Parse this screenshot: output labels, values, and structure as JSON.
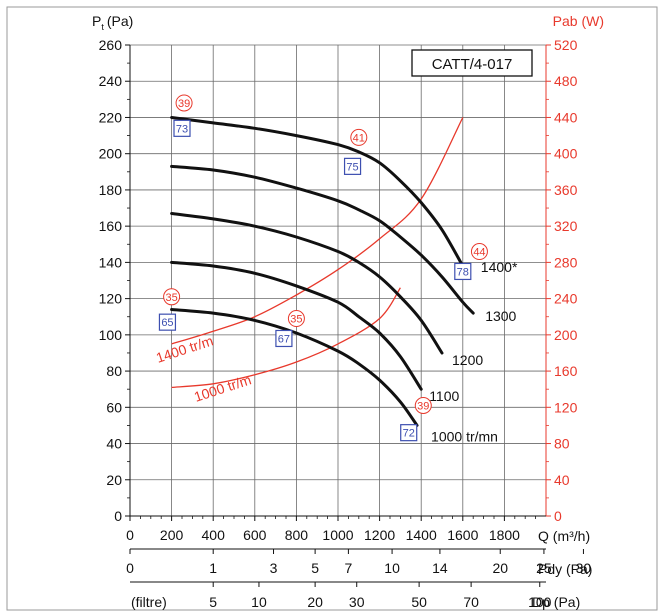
{
  "chart_data": {
    "type": "line",
    "title": "CATT/4-017",
    "xlabel": "Q (m³/h)",
    "ylabel_left": "P",
    "ylabel_left_sub": "t",
    "ylabel_left_unit": "(Pa)",
    "ylabel_right": "Pab (W)",
    "xlim": [
      0,
      2000
    ],
    "ylim": [
      0,
      260
    ],
    "ylim_right": [
      0,
      520
    ],
    "grid": true,
    "x_ticks": [
      0,
      200,
      400,
      600,
      800,
      1000,
      1200,
      1400,
      1600,
      1800
    ],
    "y_ticks": [
      0,
      20,
      40,
      60,
      80,
      100,
      120,
      140,
      160,
      180,
      200,
      220,
      240,
      260
    ],
    "y_right_ticks": [
      0,
      40,
      80,
      120,
      160,
      200,
      240,
      280,
      320,
      360,
      400,
      440,
      480,
      520
    ],
    "pressure_curves": [
      {
        "label": "1400*",
        "x": [
          200,
          400,
          600,
          800,
          1000,
          1100,
          1200,
          1300,
          1400,
          1500,
          1600
        ],
        "y": [
          220,
          217,
          214,
          210,
          205,
          201,
          195,
          185,
          173,
          158,
          138
        ]
      },
      {
        "label": "1300",
        "x": [
          200,
          400,
          600,
          800,
          1000,
          1100,
          1200,
          1300,
          1400,
          1500,
          1600,
          1650
        ],
        "y": [
          193,
          191,
          187,
          181,
          174,
          169,
          163,
          154,
          144,
          132,
          118,
          112
        ]
      },
      {
        "label": "1200",
        "x": [
          200,
          400,
          600,
          800,
          1000,
          1100,
          1200,
          1300,
          1400,
          1500
        ],
        "y": [
          167,
          164,
          160,
          154,
          146,
          140,
          132,
          121,
          108,
          90
        ]
      },
      {
        "label": "1100",
        "x": [
          200,
          400,
          600,
          800,
          1000,
          1100,
          1200,
          1300,
          1400
        ],
        "y": [
          140,
          138,
          134,
          127,
          118,
          110,
          101,
          88,
          70
        ]
      },
      {
        "label": "1000 tr/mn",
        "x": [
          200,
          400,
          600,
          800,
          1000,
          1100,
          1200,
          1300,
          1380
        ],
        "y": [
          114,
          112,
          108,
          101,
          91,
          84,
          75,
          63,
          50
        ]
      }
    ],
    "power_curves": [
      {
        "label": "1400 tr/m",
        "x": [
          200,
          400,
          600,
          800,
          1000,
          1200,
          1400,
          1600
        ],
        "y_watts": [
          190,
          204,
          220,
          244,
          272,
          306,
          350,
          440
        ]
      },
      {
        "label": "1000 tr/m",
        "x": [
          200,
          400,
          600,
          800,
          1000,
          1200,
          1300
        ],
        "y_watts": [
          142,
          146,
          156,
          170,
          190,
          218,
          252
        ]
      }
    ],
    "efficiency_markers": [
      {
        "value": "39",
        "x": 260,
        "y": 228
      },
      {
        "value": "41",
        "x": 1100,
        "y": 209
      },
      {
        "value": "44",
        "x": 1680,
        "y": 146
      },
      {
        "value": "35",
        "x": 200,
        "y": 121
      },
      {
        "value": "35",
        "x": 800,
        "y": 109
      },
      {
        "value": "39",
        "x": 1410,
        "y": 61
      }
    ],
    "noise_markers": [
      {
        "value": "73",
        "x": 250,
        "y": 214
      },
      {
        "value": "75",
        "x": 1070,
        "y": 193
      },
      {
        "value": "78",
        "x": 1600,
        "y": 135
      },
      {
        "value": "65",
        "x": 180,
        "y": 107
      },
      {
        "value": "67",
        "x": 740,
        "y": 98
      },
      {
        "value": "72",
        "x": 1340,
        "y": 46
      }
    ],
    "pdy_axis": {
      "label": "Pdy (Pa)",
      "ticks": [
        {
          "label": "0",
          "q": 0
        },
        {
          "label": "1",
          "q": 400
        },
        {
          "label": "3",
          "q": 690
        },
        {
          "label": "5",
          "q": 890
        },
        {
          "label": "7",
          "q": 1050
        },
        {
          "label": "10",
          "q": 1260
        },
        {
          "label": "14",
          "q": 1490
        },
        {
          "label": "20",
          "q": 1780
        },
        {
          "label": "25",
          "q": 1990
        },
        {
          "label": "30",
          "q": 2180
        }
      ]
    },
    "dp_axis": {
      "label": "Dp (Pa)",
      "prefix": "(filtre)",
      "ticks": [
        {
          "label": "5",
          "q": 400
        },
        {
          "label": "10",
          "q": 620
        },
        {
          "label": "20",
          "q": 890
        },
        {
          "label": "30",
          "q": 1090
        },
        {
          "label": "50",
          "q": 1390
        },
        {
          "label": "70",
          "q": 1640
        },
        {
          "label": "100",
          "q": 1970
        }
      ]
    },
    "colors": {
      "pressure": "#111111",
      "power": "#e8392c",
      "efficiency": "#e8392c",
      "noise": "#3d4fb0",
      "grid": "#6a6a6a",
      "frame": "#333333"
    }
  }
}
